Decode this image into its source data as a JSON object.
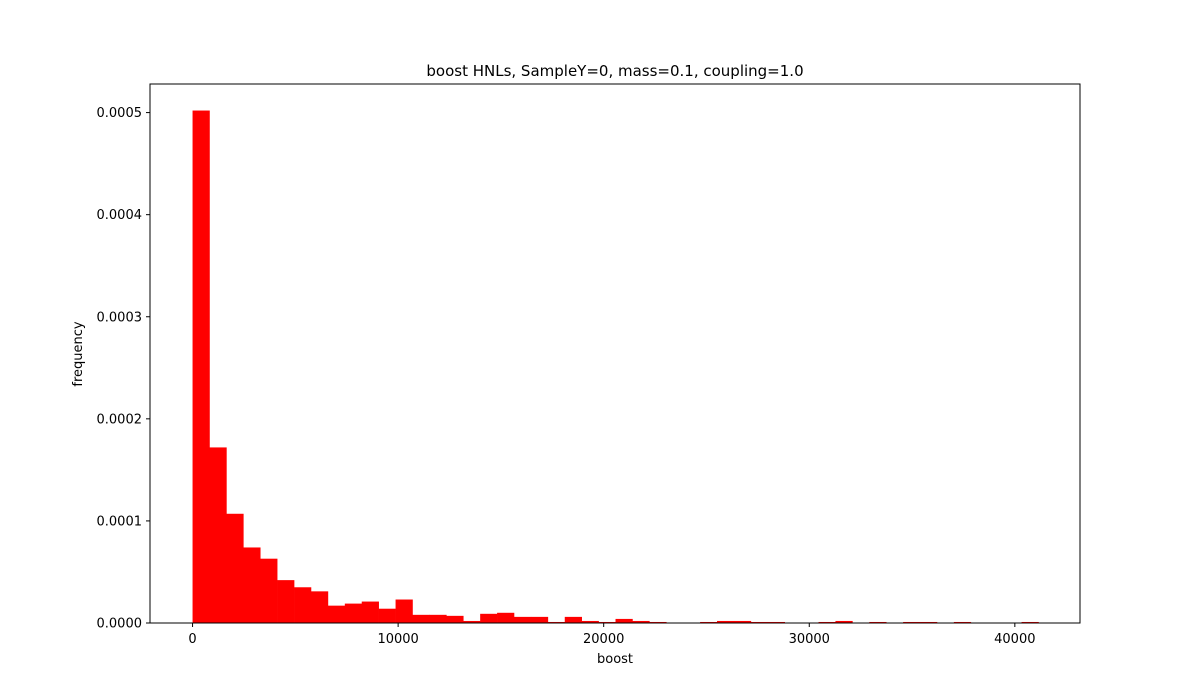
{
  "chart_data": {
    "type": "bar",
    "title": "boost HNLs, SampleY=0, mass=0.1, coupling=1.0",
    "xlabel": "boost",
    "ylabel": "frequency",
    "xlim": [
      -2070,
      43170
    ],
    "ylim": [
      0,
      0.000528
    ],
    "xticks": [
      0,
      10000,
      20000,
      30000,
      40000
    ],
    "xtick_labels": [
      "0",
      "10000",
      "20000",
      "30000",
      "40000"
    ],
    "yticks": [
      0,
      0.0001,
      0.0002,
      0.0003,
      0.0004,
      0.0005
    ],
    "ytick_labels": [
      "0.0000",
      "0.0001",
      "0.0002",
      "0.0003",
      "0.0004",
      "0.0005"
    ],
    "bin_start": 0,
    "bin_width": 823,
    "values": [
      0.000502,
      0.000172,
      0.000107,
      7.4e-05,
      6.3e-05,
      4.2e-05,
      3.5e-05,
      3.1e-05,
      1.7e-05,
      1.9e-05,
      2.1e-05,
      1.4e-05,
      2.3e-05,
      8e-06,
      8e-06,
      7e-06,
      2e-06,
      9e-06,
      1e-05,
      6e-06,
      6e-06,
      1e-06,
      6e-06,
      2e-06,
      1e-06,
      4e-06,
      2e-06,
      1e-06,
      0,
      0,
      1e-06,
      2e-06,
      2e-06,
      1e-06,
      1e-06,
      0,
      0,
      1e-06,
      2e-06,
      0,
      1e-06,
      0,
      1e-06,
      1e-06,
      0,
      1e-06,
      0,
      0,
      0,
      1e-06
    ],
    "color": "#ff0000",
    "grid": false,
    "legend": "none"
  }
}
